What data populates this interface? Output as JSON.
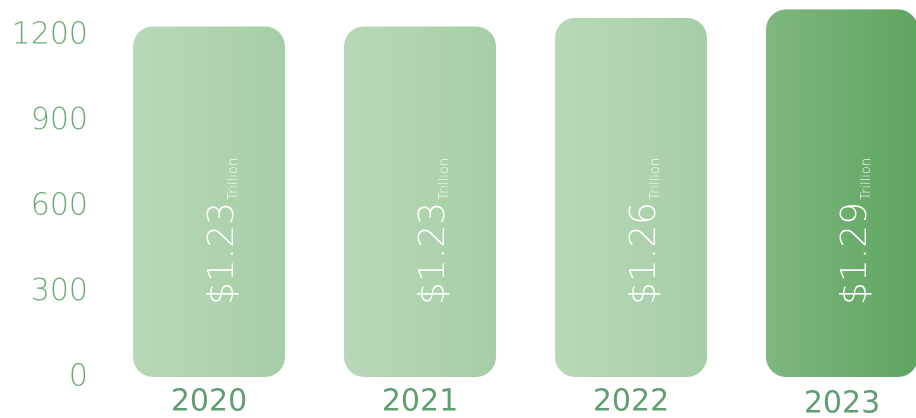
{
  "chart_data": {
    "type": "bar",
    "categories": [
      "2020",
      "2021",
      "2022",
      "2023"
    ],
    "values": [
      1230,
      1230,
      1260,
      1290
    ],
    "value_labels": [
      "$1.23",
      "$1.23",
      "$1.26",
      "$1.29"
    ],
    "unit_label": "Trillion",
    "colors": [
      "#a6cea6",
      "#a6cea6",
      "#a6cea6",
      "#5ea560"
    ],
    "ylim": [
      0,
      1200
    ],
    "yticks": [
      0,
      300,
      600,
      900,
      1200
    ],
    "grid": false
  }
}
